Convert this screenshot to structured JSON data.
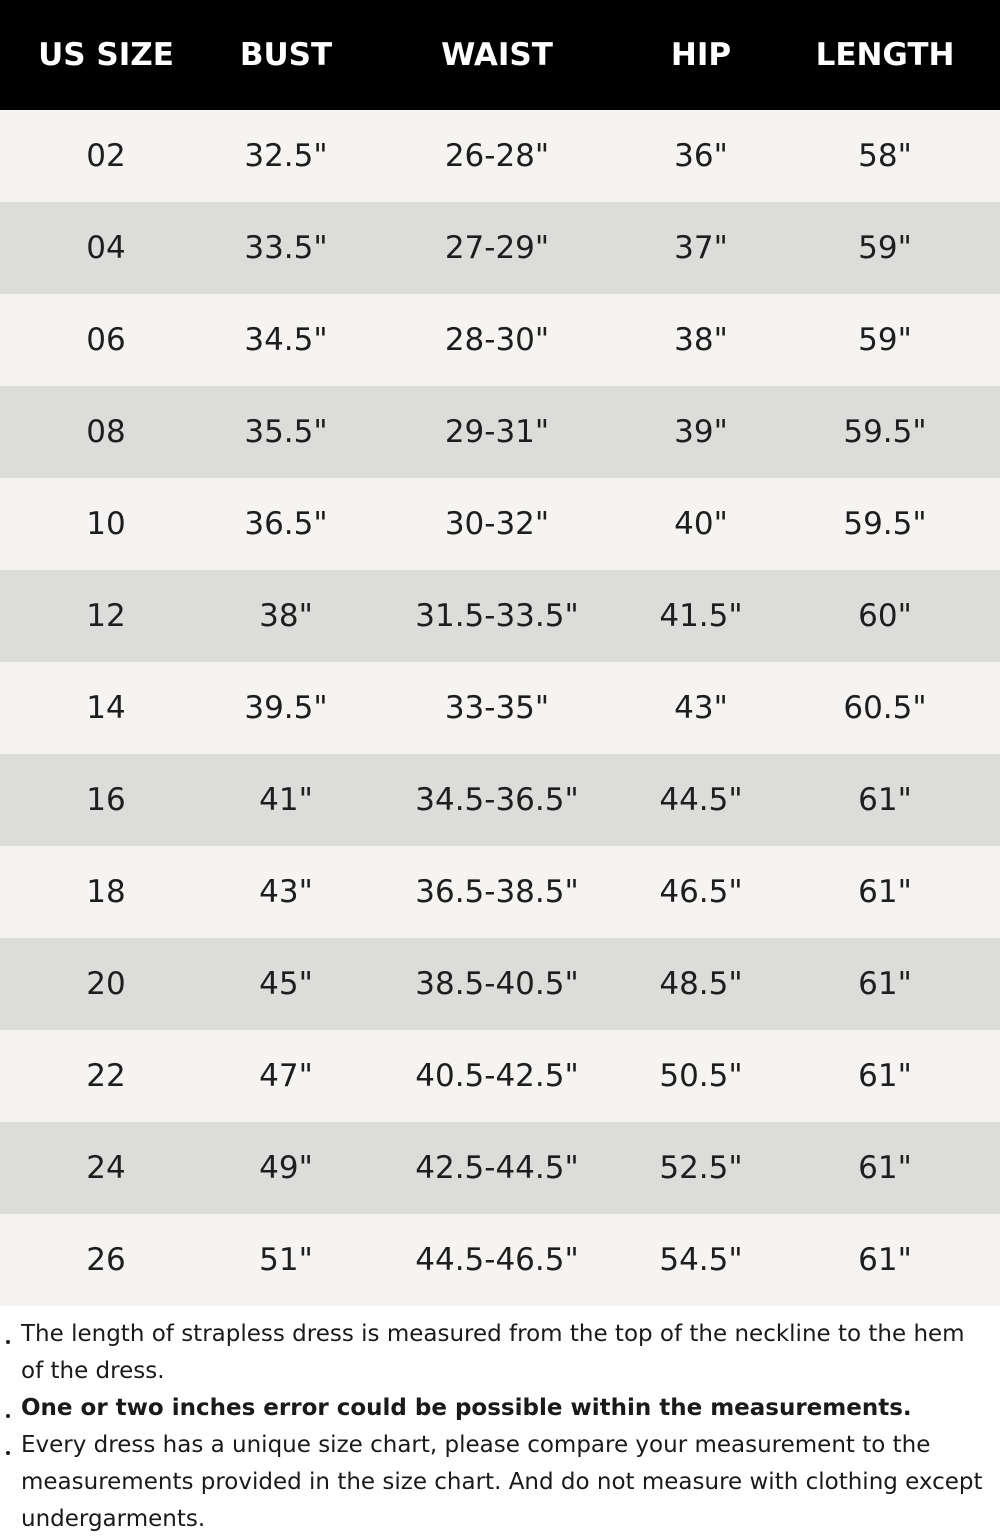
{
  "table": {
    "header": [
      "US SIZE",
      "BUST",
      "WAIST",
      "HIP",
      "LENGTH"
    ],
    "rows": [
      [
        "02",
        "32.5\"",
        "26-28\"",
        "36\"",
        "58\""
      ],
      [
        "04",
        "33.5\"",
        "27-29\"",
        "37\"",
        "59\""
      ],
      [
        "06",
        "34.5\"",
        "28-30\"",
        "38\"",
        "59\""
      ],
      [
        "08",
        "35.5\"",
        "29-31\"",
        "39\"",
        "59.5\""
      ],
      [
        "10",
        "36.5\"",
        "30-32\"",
        "40\"",
        "59.5\""
      ],
      [
        "12",
        "38\"",
        "31.5-33.5\"",
        "41.5\"",
        "60\""
      ],
      [
        "14",
        "39.5\"",
        "33-35\"",
        "43\"",
        "60.5\""
      ],
      [
        "16",
        "41\"",
        "34.5-36.5\"",
        "44.5\"",
        "61\""
      ],
      [
        "18",
        "43\"",
        "36.5-38.5\"",
        "46.5\"",
        "61\""
      ],
      [
        "20",
        "45\"",
        "38.5-40.5\"",
        "48.5\"",
        "61\""
      ],
      [
        "22",
        "47\"",
        "40.5-42.5\"",
        "50.5\"",
        "61\""
      ],
      [
        "24",
        "49\"",
        "42.5-44.5\"",
        "52.5\"",
        "61\""
      ],
      [
        "26",
        "51\"",
        "44.5-46.5\"",
        "54.5\"",
        "61\""
      ]
    ]
  },
  "notes": [
    "The length of strapless dress is measured from the top of the neckline to the hem of the dress.",
    "One or two inches error could be possible within the measurements.",
    "Every dress has a unique size chart, please compare your measurement to the measurements provided in the size chart. And do not measure with clothing except undergarments."
  ]
}
